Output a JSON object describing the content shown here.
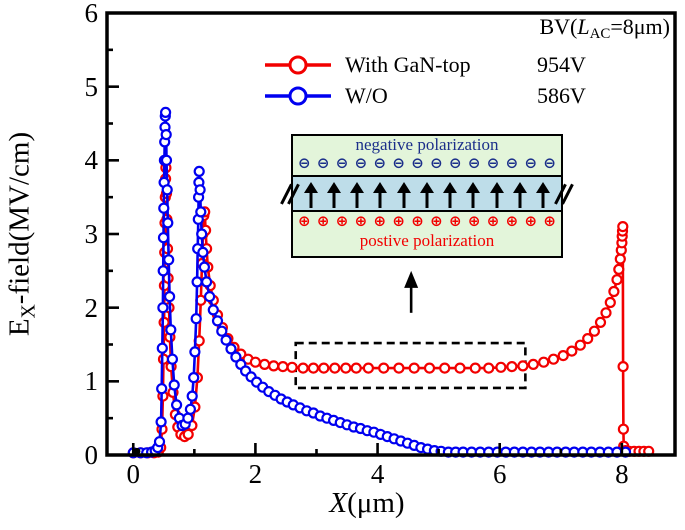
{
  "axes": {
    "ylabel": {
      "base": "E",
      "sub": "X",
      "rest": "-field(MV/cm)"
    },
    "xlabel": {
      "base": "X",
      "rest": "(μm)"
    }
  },
  "legend": {
    "header": {
      "prefix": "BV(",
      "variable": "L",
      "subscript": "AC",
      "suffix": "=8μm)"
    },
    "entries": [
      {
        "label": "With GaN-top",
        "value": "954V",
        "color": "#f20000"
      },
      {
        "label": "W/O",
        "value": "586V",
        "color": "#0000f0"
      }
    ]
  },
  "inset": {
    "top_label": "negative polarization",
    "bottom_label": "postive polarization",
    "negative_symbol": "⊖",
    "positive_symbol": "⊕",
    "symbol_count": 14,
    "arrow_count": 11,
    "colors": {
      "outer_bg": "#e3f5da",
      "band_bg": "#bedde9",
      "negative": "#1b2f8a",
      "positive": "#f20000",
      "border": "#000000"
    }
  },
  "chart_data": {
    "type": "line",
    "title": "",
    "xlabel": "X(μm)",
    "ylabel": "EX-field(MV/cm)",
    "xlim": [
      -0.43,
      8.87
    ],
    "ylim": [
      0,
      6
    ],
    "x_major_ticks": [
      0,
      2,
      4,
      6,
      8
    ],
    "x_minor_ticks": [
      1,
      3,
      5,
      7
    ],
    "y_major_ticks": [
      0,
      1,
      2,
      3,
      4,
      5,
      6
    ],
    "y_minor_ticks": [
      0.5,
      1.5,
      2.5,
      3.5,
      4.5,
      5.5
    ],
    "grid": false,
    "legend_position": "top-right-inside",
    "marker": "open-circle",
    "series": [
      {
        "name": "With GaN-top",
        "breakdown_voltage": "954V",
        "color": "#f20000",
        "points": [
          [
            0.0,
            0.03
          ],
          [
            0.12,
            0.03
          ],
          [
            0.24,
            0.03
          ],
          [
            0.34,
            0.03
          ],
          [
            0.41,
            0.04
          ],
          [
            0.45,
            0.1
          ],
          [
            0.47,
            0.35
          ],
          [
            0.485,
            0.8
          ],
          [
            0.495,
            1.3
          ],
          [
            0.505,
            1.8
          ],
          [
            0.51,
            2.3
          ],
          [
            0.515,
            2.75
          ],
          [
            0.52,
            3.15
          ],
          [
            0.525,
            3.5
          ],
          [
            0.53,
            3.75
          ],
          [
            0.535,
            3.9
          ],
          [
            0.545,
            3.55
          ],
          [
            0.55,
            3.2
          ],
          [
            0.56,
            2.8
          ],
          [
            0.57,
            2.4
          ],
          [
            0.585,
            2.0
          ],
          [
            0.6,
            1.6
          ],
          [
            0.62,
            1.2
          ],
          [
            0.65,
            0.85
          ],
          [
            0.69,
            0.55
          ],
          [
            0.73,
            0.38
          ],
          [
            0.78,
            0.28
          ],
          [
            0.84,
            0.25
          ],
          [
            0.9,
            0.28
          ],
          [
            0.96,
            0.4
          ],
          [
            1.01,
            0.65
          ],
          [
            1.05,
            1.05
          ],
          [
            1.08,
            1.55
          ],
          [
            1.105,
            2.1
          ],
          [
            1.125,
            2.6
          ],
          [
            1.14,
            3.0
          ],
          [
            1.155,
            3.25
          ],
          [
            1.17,
            3.3
          ],
          [
            1.185,
            3.05
          ],
          [
            1.2,
            2.8
          ],
          [
            1.22,
            2.55
          ],
          [
            1.26,
            2.3
          ],
          [
            1.31,
            2.1
          ],
          [
            1.38,
            1.9
          ],
          [
            1.46,
            1.73
          ],
          [
            1.55,
            1.58
          ],
          [
            1.65,
            1.46
          ],
          [
            1.76,
            1.37
          ],
          [
            1.88,
            1.3
          ],
          [
            2.0,
            1.26
          ],
          [
            2.15,
            1.23
          ],
          [
            2.3,
            1.21
          ],
          [
            2.45,
            1.2
          ],
          [
            2.6,
            1.19
          ],
          [
            2.78,
            1.18
          ],
          [
            2.95,
            1.18
          ],
          [
            3.12,
            1.18
          ],
          [
            3.3,
            1.18
          ],
          [
            3.48,
            1.18
          ],
          [
            3.65,
            1.18
          ],
          [
            3.85,
            1.18
          ],
          [
            4.1,
            1.18
          ],
          [
            4.35,
            1.18
          ],
          [
            4.6,
            1.18
          ],
          [
            4.85,
            1.18
          ],
          [
            5.1,
            1.18
          ],
          [
            5.35,
            1.18
          ],
          [
            5.6,
            1.18
          ],
          [
            5.82,
            1.18
          ],
          [
            6.02,
            1.19
          ],
          [
            6.2,
            1.2
          ],
          [
            6.38,
            1.21
          ],
          [
            6.55,
            1.23
          ],
          [
            6.72,
            1.26
          ],
          [
            6.88,
            1.3
          ],
          [
            7.04,
            1.35
          ],
          [
            7.18,
            1.41
          ],
          [
            7.32,
            1.49
          ],
          [
            7.44,
            1.58
          ],
          [
            7.55,
            1.68
          ],
          [
            7.65,
            1.8
          ],
          [
            7.74,
            1.93
          ],
          [
            7.81,
            2.07
          ],
          [
            7.87,
            2.22
          ],
          [
            7.92,
            2.38
          ],
          [
            7.95,
            2.52
          ],
          [
            7.975,
            2.66
          ],
          [
            7.99,
            2.78
          ],
          [
            8.0,
            2.88
          ],
          [
            8.005,
            2.97
          ],
          [
            8.01,
            3.04
          ],
          [
            8.015,
            3.1
          ],
          [
            8.02,
            1.2
          ],
          [
            8.025,
            0.35
          ],
          [
            8.03,
            0.12
          ],
          [
            8.06,
            0.06
          ],
          [
            8.12,
            0.05
          ],
          [
            8.2,
            0.05
          ],
          [
            8.28,
            0.05
          ],
          [
            8.36,
            0.05
          ],
          [
            8.44,
            0.05
          ]
        ]
      },
      {
        "name": "W/O",
        "breakdown_voltage": "586V",
        "color": "#0000f0",
        "points": [
          [
            0.0,
            0.03
          ],
          [
            0.12,
            0.03
          ],
          [
            0.22,
            0.03
          ],
          [
            0.3,
            0.04
          ],
          [
            0.36,
            0.06
          ],
          [
            0.4,
            0.1
          ],
          [
            0.43,
            0.18
          ],
          [
            0.455,
            0.45
          ],
          [
            0.465,
            0.9
          ],
          [
            0.475,
            1.45
          ],
          [
            0.485,
            2.0
          ],
          [
            0.49,
            2.5
          ],
          [
            0.495,
            2.95
          ],
          [
            0.5,
            3.35
          ],
          [
            0.505,
            3.7
          ],
          [
            0.51,
            4.0
          ],
          [
            0.515,
            4.25
          ],
          [
            0.52,
            4.45
          ],
          [
            0.525,
            4.6
          ],
          [
            0.53,
            4.65
          ],
          [
            0.54,
            4.35
          ],
          [
            0.545,
            4.0
          ],
          [
            0.555,
            3.6
          ],
          [
            0.565,
            3.15
          ],
          [
            0.58,
            2.65
          ],
          [
            0.595,
            2.15
          ],
          [
            0.615,
            1.7
          ],
          [
            0.64,
            1.3
          ],
          [
            0.67,
            0.95
          ],
          [
            0.71,
            0.68
          ],
          [
            0.755,
            0.5
          ],
          [
            0.8,
            0.4
          ],
          [
            0.85,
            0.42
          ],
          [
            0.895,
            0.5
          ],
          [
            0.935,
            0.62
          ],
          [
            0.965,
            0.8
          ],
          [
            0.99,
            1.05
          ],
          [
            1.01,
            1.4
          ],
          [
            1.03,
            1.85
          ],
          [
            1.045,
            2.35
          ],
          [
            1.055,
            2.8
          ],
          [
            1.065,
            3.2
          ],
          [
            1.07,
            3.5
          ],
          [
            1.075,
            3.7
          ],
          [
            1.08,
            3.85
          ],
          [
            1.095,
            3.6
          ],
          [
            1.105,
            3.3
          ],
          [
            1.12,
            3.0
          ],
          [
            1.14,
            2.75
          ],
          [
            1.165,
            2.55
          ],
          [
            1.2,
            2.35
          ],
          [
            1.25,
            2.15
          ],
          [
            1.31,
            1.97
          ],
          [
            1.38,
            1.82
          ],
          [
            1.45,
            1.68
          ],
          [
            1.52,
            1.56
          ],
          [
            1.6,
            1.44
          ],
          [
            1.68,
            1.33
          ],
          [
            1.76,
            1.23
          ],
          [
            1.84,
            1.14
          ],
          [
            1.93,
            1.06
          ],
          [
            2.02,
            0.99
          ],
          [
            2.12,
            0.92
          ],
          [
            2.22,
            0.86
          ],
          [
            2.32,
            0.81
          ],
          [
            2.42,
            0.76
          ],
          [
            2.52,
            0.72
          ],
          [
            2.62,
            0.68
          ],
          [
            2.73,
            0.64
          ],
          [
            2.84,
            0.6
          ],
          [
            2.95,
            0.57
          ],
          [
            3.06,
            0.53
          ],
          [
            3.17,
            0.5
          ],
          [
            3.28,
            0.47
          ],
          [
            3.39,
            0.44
          ],
          [
            3.5,
            0.41
          ],
          [
            3.61,
            0.38
          ],
          [
            3.72,
            0.36
          ],
          [
            3.83,
            0.33
          ],
          [
            3.94,
            0.31
          ],
          [
            4.05,
            0.28
          ],
          [
            4.16,
            0.25
          ],
          [
            4.27,
            0.22
          ],
          [
            4.38,
            0.19
          ],
          [
            4.49,
            0.16
          ],
          [
            4.6,
            0.13
          ],
          [
            4.71,
            0.1
          ],
          [
            4.82,
            0.08
          ],
          [
            4.93,
            0.06
          ],
          [
            5.04,
            0.05
          ],
          [
            5.16,
            0.04
          ],
          [
            5.28,
            0.04
          ],
          [
            5.4,
            0.04
          ],
          [
            5.54,
            0.04
          ],
          [
            5.68,
            0.04
          ],
          [
            5.82,
            0.04
          ],
          [
            5.96,
            0.04
          ],
          [
            6.1,
            0.04
          ],
          [
            6.24,
            0.04
          ],
          [
            6.38,
            0.04
          ],
          [
            6.52,
            0.04
          ],
          [
            6.66,
            0.04
          ],
          [
            6.8,
            0.04
          ],
          [
            6.94,
            0.04
          ],
          [
            7.08,
            0.04
          ],
          [
            7.22,
            0.04
          ],
          [
            7.36,
            0.04
          ],
          [
            7.5,
            0.04
          ],
          [
            7.64,
            0.04
          ],
          [
            7.78,
            0.04
          ],
          [
            7.92,
            0.04
          ],
          [
            8.06,
            0.04
          ]
        ]
      }
    ],
    "annotations": {
      "dashed_box": {
        "x0": 2.66,
        "x1": 6.42,
        "y0": 0.91,
        "y1": 1.52
      },
      "arrow": {
        "x": 4.55,
        "y_from": 1.93,
        "y_to": 2.5
      },
      "origin_dot": {
        "x": 0.06,
        "y": 0.05
      }
    }
  }
}
